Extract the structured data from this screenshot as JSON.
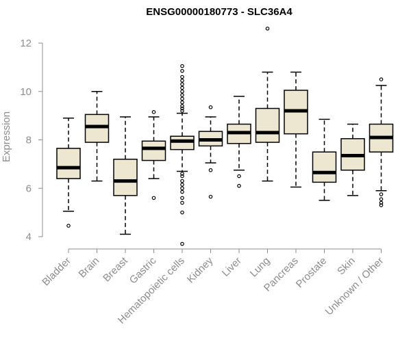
{
  "chart_data": {
    "type": "box",
    "title": "ENSG00000180773 - SLC36A4",
    "xlabel": "",
    "ylabel": "Expression",
    "ylim": [
      3.5,
      12.6
    ],
    "yticks": [
      4,
      6,
      8,
      10,
      12
    ],
    "colors": {
      "box_fill": "#ede6d0",
      "median": "#000000",
      "axis": "#8c8c8c",
      "title": "#000000"
    },
    "categories": [
      "Bladder",
      "Brain",
      "Breast",
      "Gastric",
      "Hematopoietic cells",
      "Kidney",
      "Liver",
      "Lung",
      "Pancreas",
      "Prostate",
      "Skin",
      "Unknown / Other"
    ],
    "boxes": [
      {
        "name": "Bladder",
        "min": 5.05,
        "q1": 6.4,
        "median": 6.85,
        "q3": 7.65,
        "max": 8.9,
        "outliers": [
          4.45
        ]
      },
      {
        "name": "Brain",
        "min": 6.3,
        "q1": 7.9,
        "median": 8.55,
        "q3": 9.05,
        "max": 10.0,
        "outliers": []
      },
      {
        "name": "Breast",
        "min": 4.1,
        "q1": 5.7,
        "median": 6.3,
        "q3": 7.2,
        "max": 8.95,
        "outliers": []
      },
      {
        "name": "Gastric",
        "min": 6.4,
        "q1": 7.15,
        "median": 7.65,
        "q3": 7.95,
        "max": 8.95,
        "outliers": [
          9.15,
          5.6
        ]
      },
      {
        "name": "Hematopoietic cells",
        "min": 6.7,
        "q1": 7.6,
        "median": 7.95,
        "q3": 8.15,
        "max": 9.1,
        "outliers": [
          11.05,
          10.85,
          10.6,
          10.45,
          10.3,
          10.15,
          10.0,
          9.85,
          9.7,
          9.55,
          9.4,
          9.3,
          9.2,
          6.6,
          6.5,
          6.3,
          6.15,
          6.0,
          5.85,
          5.6,
          5.4,
          5.0,
          3.7
        ]
      },
      {
        "name": "Kidney",
        "min": 7.05,
        "q1": 7.75,
        "median": 8.0,
        "q3": 8.35,
        "max": 8.95,
        "outliers": [
          9.35,
          6.75,
          5.65
        ]
      },
      {
        "name": "Liver",
        "min": 6.75,
        "q1": 7.85,
        "median": 8.3,
        "q3": 8.65,
        "max": 9.8,
        "outliers": [
          6.5,
          6.1
        ]
      },
      {
        "name": "Lung",
        "min": 6.3,
        "q1": 7.9,
        "median": 8.3,
        "q3": 9.3,
        "max": 10.8,
        "outliers": [
          12.6
        ]
      },
      {
        "name": "Pancreas",
        "min": 6.05,
        "q1": 8.25,
        "median": 9.2,
        "q3": 10.05,
        "max": 10.8,
        "outliers": []
      },
      {
        "name": "Prostate",
        "min": 5.5,
        "q1": 6.25,
        "median": 6.65,
        "q3": 7.5,
        "max": 8.85,
        "outliers": []
      },
      {
        "name": "Skin",
        "min": 5.7,
        "q1": 6.75,
        "median": 7.35,
        "q3": 8.05,
        "max": 8.65,
        "outliers": []
      },
      {
        "name": "Unknown / Other",
        "min": 5.9,
        "q1": 7.5,
        "median": 8.1,
        "q3": 8.65,
        "max": 10.25,
        "outliers": [
          10.5,
          5.75,
          5.55,
          5.4,
          5.3
        ]
      }
    ]
  }
}
